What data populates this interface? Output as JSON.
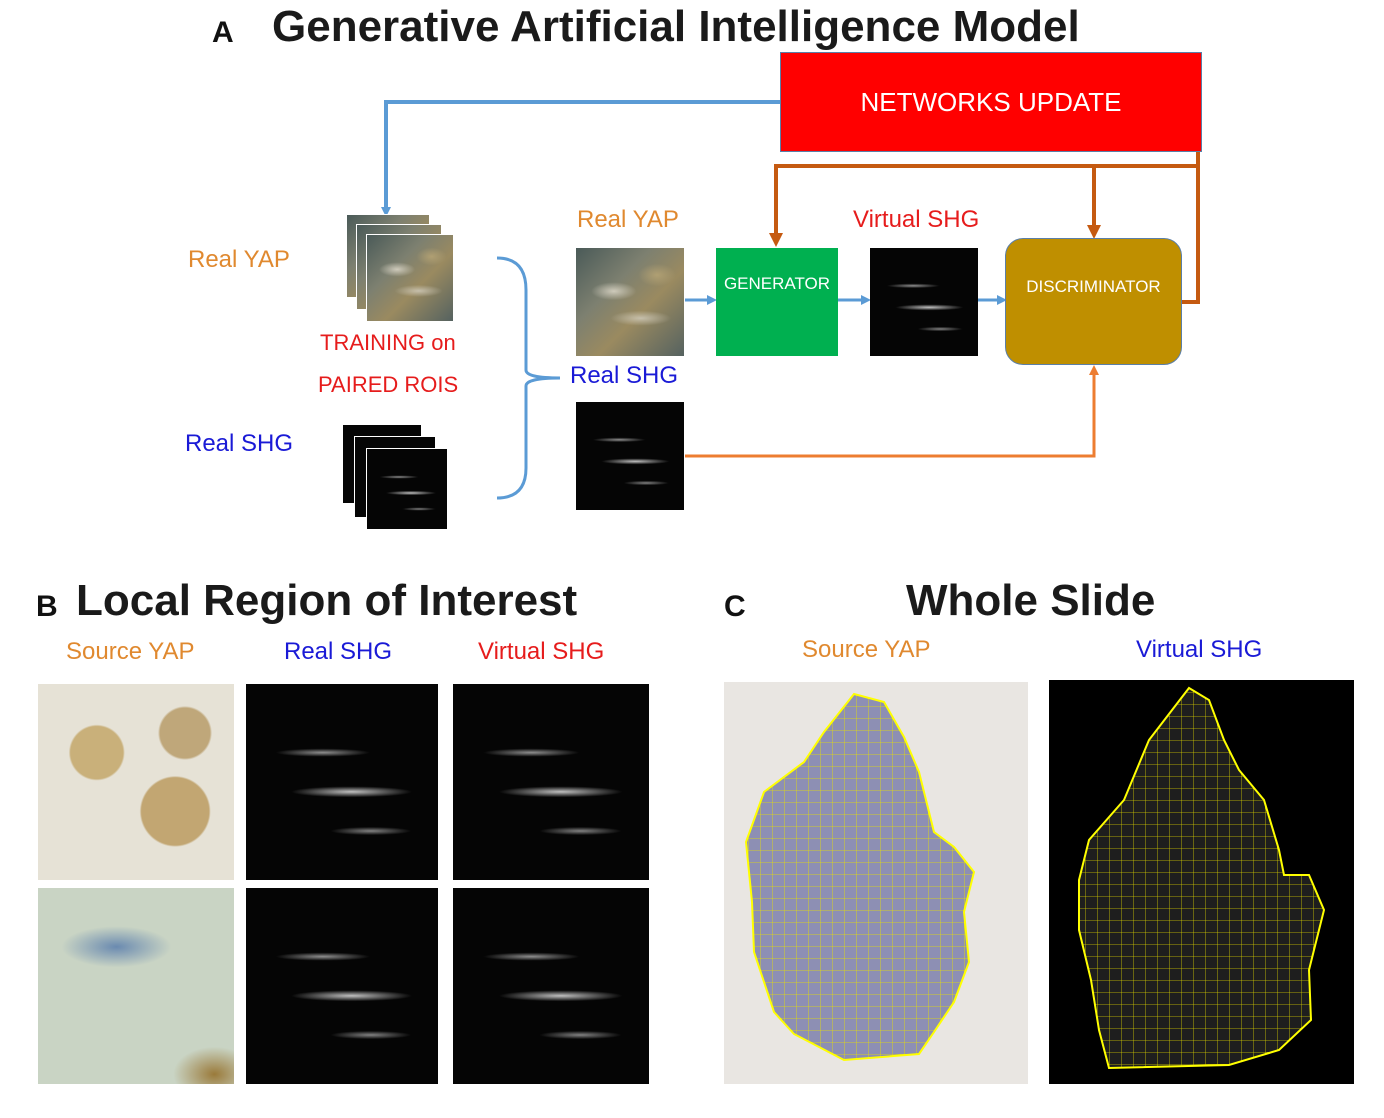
{
  "panel_a": {
    "letter": "A",
    "title": "Generative Artificial Intelligence Model",
    "networks_update": "NETWORKS UPDATE",
    "left_real_yap": "Real YAP",
    "left_real_shg": "Real SHG",
    "training_line1": "TRAINING on",
    "training_line2": "PAIRED ROIS",
    "mid_real_yap": "Real YAP",
    "mid_real_shg": "Real SHG",
    "virtual_shg": "Virtual SHG",
    "generator": "GENERATOR",
    "discriminator": "DISCRIMINATOR"
  },
  "panel_b": {
    "letter": "B",
    "title": "Local Region of Interest",
    "col1": "Source YAP",
    "col2": "Real SHG",
    "col3": "Virtual SHG"
  },
  "panel_c": {
    "letter": "C",
    "title": "Whole Slide",
    "col1": "Source YAP",
    "col2": "Virtual SHG"
  },
  "colors": {
    "networks_update_fill": "#ff0000",
    "generator_fill": "#00b050",
    "discriminator_fill": "#bf8f00",
    "update_arrow": "#5b9bd5",
    "feedback_arrow": "#c55a11",
    "real_shg_arrow": "#ed7d31",
    "orange_label": "#e0892f",
    "blue_label": "#1a1ad6",
    "red_label": "#e61c1c",
    "grid_outline": "#ffff00"
  }
}
